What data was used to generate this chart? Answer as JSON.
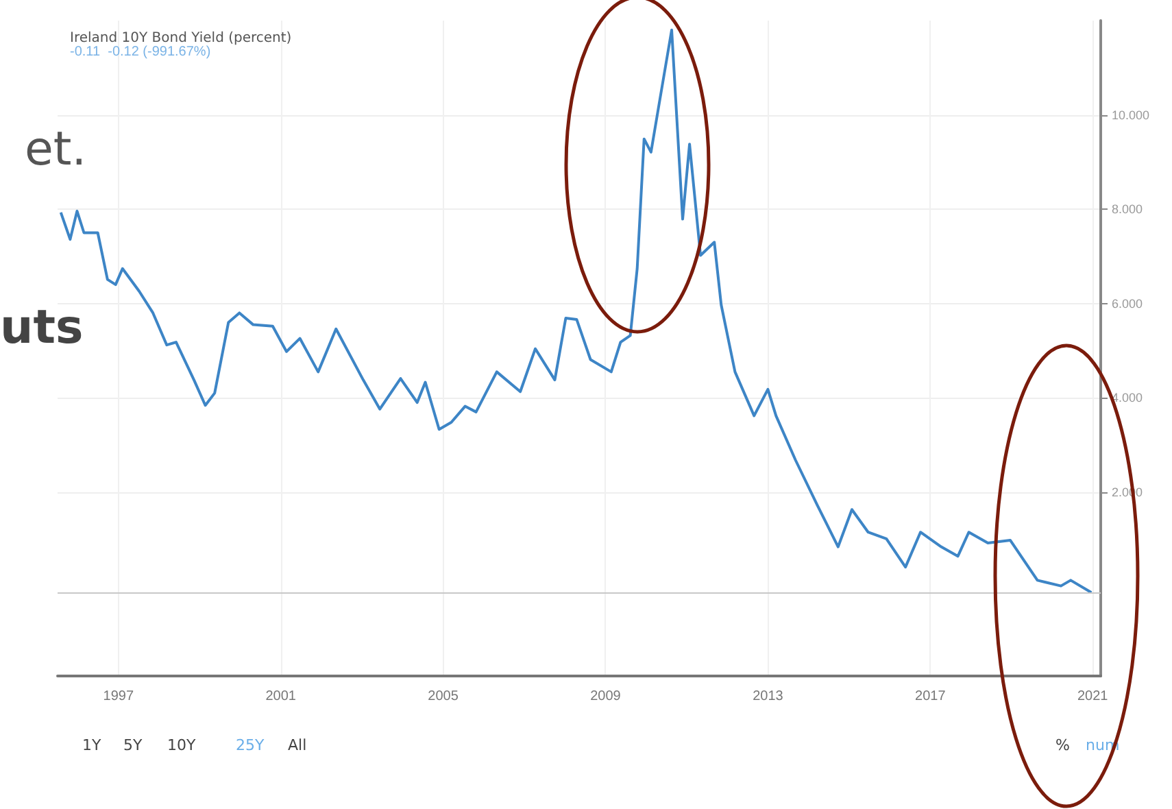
{
  "chart_data": {
    "type": "line",
    "title": "Ireland 10Y Bond Yield (percent)",
    "subtitle": "-0.11  -0.12 (-991.67%)",
    "x": [
      1995.58,
      1995.81,
      1995.98,
      1996.15,
      1996.49,
      1996.73,
      1996.93,
      1997.1,
      1997.51,
      1997.85,
      1998.19,
      1998.42,
      1998.86,
      1999.14,
      1999.37,
      1999.71,
      1999.98,
      2000.32,
      2000.8,
      2001.14,
      2001.47,
      2001.92,
      2002.36,
      2003.03,
      2003.44,
      2003.95,
      2004.36,
      2004.56,
      2004.9,
      2005.2,
      2005.54,
      2005.81,
      2006.32,
      2006.9,
      2007.27,
      2007.75,
      2008.02,
      2008.29,
      2008.63,
      2009.14,
      2009.37,
      2009.61,
      2009.78,
      2009.95,
      2010.12,
      2010.32,
      2010.63,
      2010.9,
      2011.07,
      2011.34,
      2011.68,
      2011.85,
      2012.19,
      2012.66,
      2013.0,
      2013.2,
      2013.68,
      2014.22,
      2014.73,
      2015.07,
      2015.47,
      2015.92,
      2016.39,
      2016.76,
      2017.27,
      2017.68,
      2017.95,
      2018.42,
      2018.97,
      2019.64,
      2020.22,
      2020.46,
      2020.97
    ],
    "series": [
      {
        "color": "#3d85c6",
        "values": [
          7.93,
          7.36,
          7.96,
          7.5,
          7.5,
          6.51,
          6.4,
          6.74,
          6.26,
          5.8,
          5.12,
          5.18,
          4.38,
          3.84,
          4.1,
          5.6,
          5.8,
          5.55,
          5.52,
          4.98,
          5.26,
          4.55,
          5.46,
          4.38,
          3.76,
          4.41,
          3.9,
          4.33,
          3.33,
          3.48,
          3.82,
          3.7,
          4.55,
          4.13,
          5.04,
          4.38,
          5.69,
          5.66,
          4.81,
          4.55,
          5.18,
          5.32,
          6.74,
          9.49,
          9.21,
          10.23,
          11.8,
          7.79,
          9.38,
          7.02,
          7.3,
          5.97,
          4.55,
          3.62,
          4.18,
          3.62,
          2.68,
          1.72,
          0.84,
          1.63,
          1.15,
          1.01,
          0.41,
          1.15,
          0.84,
          0.64,
          1.15,
          0.92,
          0.98,
          0.13,
          0.01,
          0.13,
          -0.13
        ]
      }
    ],
    "xlim": [
      1995.5,
      2021.2
    ],
    "xticks": [
      1997,
      2001,
      2005,
      2009,
      2013,
      2017,
      2021
    ],
    "ylim": [
      -1.9,
      12
    ],
    "yticks": [
      {
        "value": 2,
        "label": "2.000"
      },
      {
        "value": 4,
        "label": "4.000"
      },
      {
        "value": 6,
        "label": "6.000"
      },
      {
        "value": 8,
        "label": "8.000"
      },
      {
        "value": 10,
        "label": "10.000"
      }
    ],
    "ref_lines": [
      {
        "axis": "y",
        "value": -0.12,
        "color": "#c8c8c8"
      }
    ],
    "annotations": [
      "et.",
      "uts",
      "1Y",
      "5Y",
      "10Y",
      "25Y",
      "All",
      "%",
      "num"
    ],
    "grid": true,
    "marker": "none",
    "line_style": "solid"
  }
}
